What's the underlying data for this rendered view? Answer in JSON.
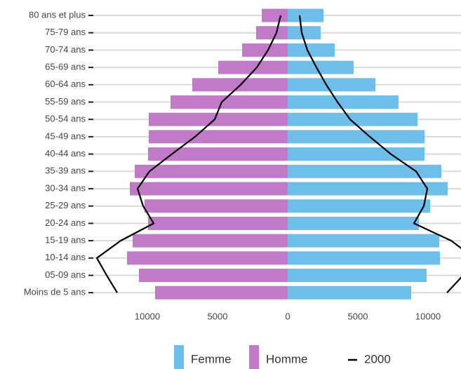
{
  "chart_data": {
    "type": "pyramid",
    "categories": [
      "80 ans et plus",
      "75-79 ans",
      "70-74 ans",
      "65-69 ans",
      "60-64 ans",
      "55-59 ans",
      "50-54 ans",
      "45-49 ans",
      "40-44 ans",
      "35-39 ans",
      "30-34 ans",
      "25-29 ans",
      "20-24 ans",
      "15-19 ans",
      "10-14 ans",
      "05-09 ans",
      "Moins de 5 ans"
    ],
    "series": [
      {
        "name": "Femme",
        "color": "#6dbfea",
        "values": [
          2550,
          2350,
          3350,
          4700,
          6250,
          7900,
          9250,
          9750,
          9750,
          10950,
          11400,
          10150,
          9350,
          10800,
          10850,
          9900,
          8800
        ]
      },
      {
        "name": "Homme",
        "color": "#c07ac7",
        "values": [
          -1850,
          -2250,
          -3250,
          -4950,
          -6800,
          -8350,
          -9900,
          -9900,
          -9950,
          -10900,
          -11250,
          -10200,
          -9950,
          -11050,
          -11450,
          -10600,
          -9450
        ]
      }
    ],
    "line": {
      "name": "2000",
      "color": "#000000",
      "left": [
        -500,
        -800,
        -1400,
        -2200,
        -3350,
        -4700,
        -5200,
        -6600,
        -8250,
        -9850,
        -10700,
        -10300,
        -9550,
        -11900,
        -13600,
        -12900,
        -12150
      ],
      "right": [
        850,
        1000,
        1400,
        2050,
        2750,
        3550,
        4450,
        5850,
        7350,
        9150,
        9950,
        9700,
        9000,
        11650,
        13300,
        12500,
        11350
      ]
    },
    "xlim": [
      -14000,
      12350
    ],
    "xticks": [
      {
        "value": -10000,
        "label": "10000"
      },
      {
        "value": -5000,
        "label": "5000"
      },
      0,
      5000,
      10000
    ],
    "grid": true
  }
}
